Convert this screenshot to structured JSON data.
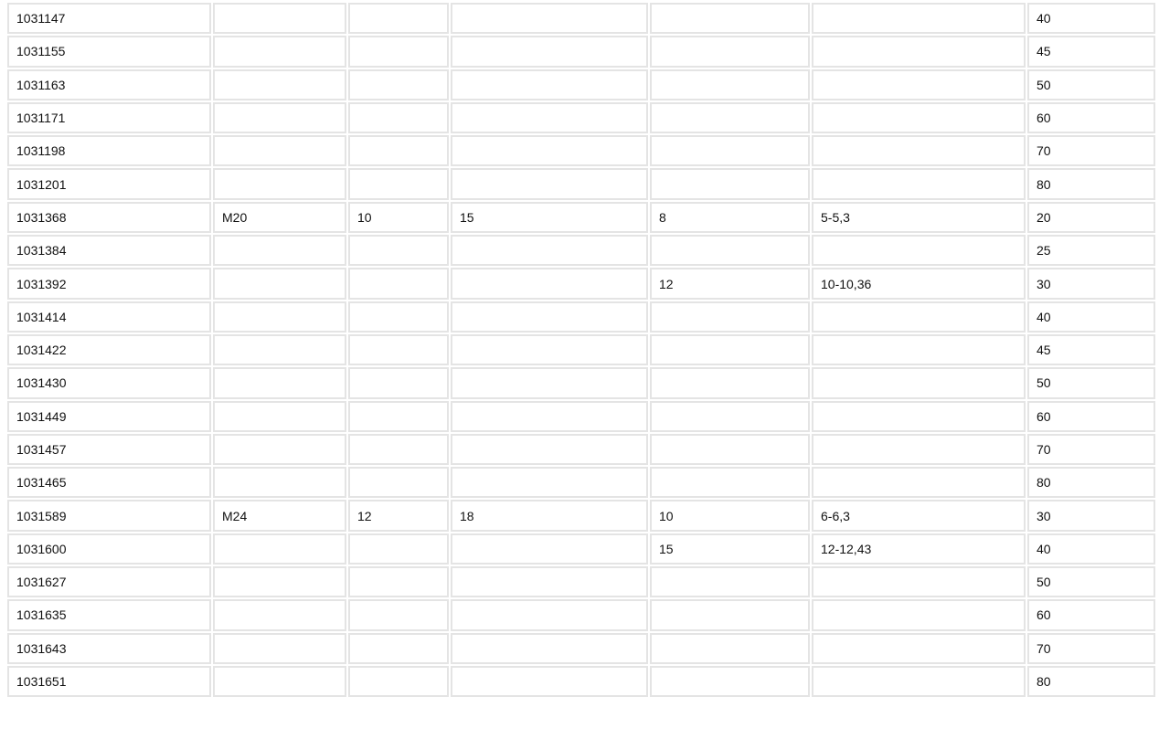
{
  "table": {
    "rows": [
      [
        "1031147",
        "",
        "",
        "",
        "",
        "",
        "40"
      ],
      [
        "1031155",
        "",
        "",
        "",
        "",
        "",
        "45"
      ],
      [
        "1031163",
        "",
        "",
        "",
        "",
        "",
        "50"
      ],
      [
        "1031171",
        "",
        "",
        "",
        "",
        "",
        "60"
      ],
      [
        "1031198",
        "",
        "",
        "",
        "",
        "",
        "70"
      ],
      [
        "1031201",
        "",
        "",
        "",
        "",
        "",
        "80"
      ],
      [
        "1031368",
        "M20",
        "10",
        "15",
        "8",
        "5-5,3",
        "20"
      ],
      [
        "1031384",
        "",
        "",
        "",
        "",
        "",
        "25"
      ],
      [
        "1031392",
        "",
        "",
        "",
        "12",
        "10-10,36",
        "30"
      ],
      [
        "1031414",
        "",
        "",
        "",
        "",
        "",
        "40"
      ],
      [
        "1031422",
        "",
        "",
        "",
        "",
        "",
        "45"
      ],
      [
        "1031430",
        "",
        "",
        "",
        "",
        "",
        "50"
      ],
      [
        "1031449",
        "",
        "",
        "",
        "",
        "",
        "60"
      ],
      [
        "1031457",
        "",
        "",
        "",
        "",
        "",
        "70"
      ],
      [
        "1031465",
        "",
        "",
        "",
        "",
        "",
        "80"
      ],
      [
        "1031589",
        "M24",
        "12",
        "18",
        "10",
        "6-6,3",
        "30"
      ],
      [
        "1031600",
        "",
        "",
        "",
        "15",
        "12-12,43",
        "40"
      ],
      [
        "1031627",
        "",
        "",
        "",
        "",
        "",
        "50"
      ],
      [
        "1031635",
        "",
        "",
        "",
        "",
        "",
        "60"
      ],
      [
        "1031643",
        "",
        "",
        "",
        "",
        "",
        "70"
      ],
      [
        "1031651",
        "",
        "",
        "",
        "",
        "",
        "80"
      ]
    ]
  }
}
